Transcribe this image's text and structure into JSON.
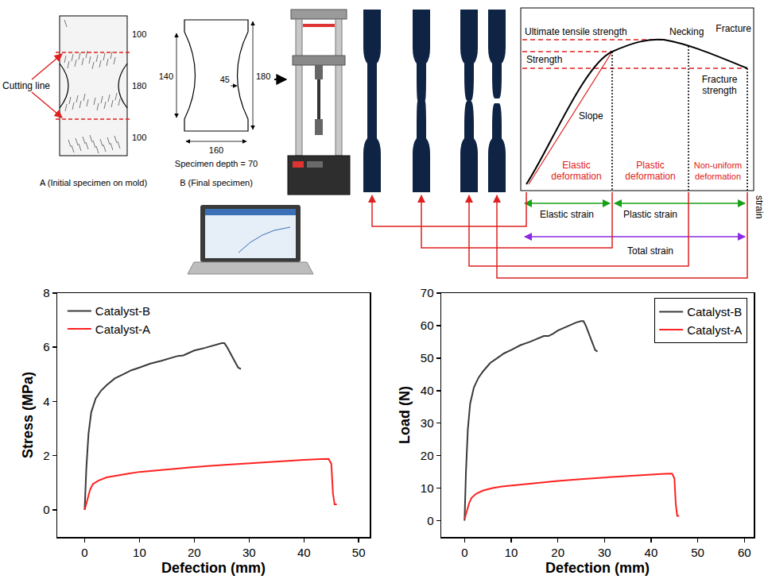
{
  "diagram": {
    "specimen_a": {
      "label": "Cutting line",
      "dims": [
        100,
        180,
        100
      ],
      "caption": "A (Initial specimen on mold)"
    },
    "specimen_b": {
      "left": 140,
      "right": 180,
      "inner": 45,
      "bottom": 160,
      "depth": "Specimen depth = 70",
      "caption": "B (Final specimen)"
    },
    "curve": {
      "ultimate": "Ultimate tensile strength",
      "necking": "Necking",
      "fracture": "Fracture",
      "strength": "Strength",
      "fracture_strength": "Fracture strength",
      "slope": "Slope",
      "elastic_deformation": "Elastic deformation",
      "plastic_deformation": "Plastic deformation",
      "nonuniform_deformation": "Non-uniform deformation",
      "elastic_strain": "Elastic strain",
      "plastic_strain": "Plastic strain",
      "total_strain": "Total strain",
      "axis": "strain"
    }
  },
  "chart_data": [
    {
      "type": "line",
      "x_label": "Defection (mm)",
      "y_label": "Stress (MPa)",
      "xlim": [
        -5,
        52
      ],
      "xticks": [
        0,
        10,
        20,
        30,
        40,
        50
      ],
      "ylim": [
        -1,
        8
      ],
      "yticks": [
        0,
        2,
        4,
        6,
        8
      ],
      "grid": false,
      "legend": "upper left",
      "series": [
        {
          "name": "Catalyst-B",
          "color": "#3a3a3a",
          "x": [
            0,
            0.3,
            0.7,
            1.2,
            2,
            3,
            4,
            5.5,
            7,
            8.5,
            10,
            12,
            14,
            16,
            17,
            18,
            19,
            20,
            22,
            24,
            25,
            25.5,
            26,
            26.8,
            27.5,
            28,
            28.5
          ],
          "values": [
            0,
            1.5,
            2.8,
            3.6,
            4.1,
            4.4,
            4.6,
            4.85,
            5.0,
            5.15,
            5.25,
            5.4,
            5.5,
            5.62,
            5.68,
            5.7,
            5.78,
            5.88,
            5.98,
            6.1,
            6.15,
            6.15,
            6.0,
            5.7,
            5.45,
            5.25,
            5.2
          ]
        },
        {
          "name": "Catalyst-A",
          "color": "#ff2020",
          "x": [
            0,
            0.5,
            1,
            1.5,
            2.5,
            4,
            6,
            8,
            10,
            15,
            20,
            25,
            30,
            35,
            40,
            43,
            44.5,
            45,
            45.3,
            45.6,
            46
          ],
          "values": [
            0,
            0.4,
            0.75,
            0.95,
            1.08,
            1.2,
            1.28,
            1.34,
            1.4,
            1.5,
            1.58,
            1.65,
            1.72,
            1.78,
            1.84,
            1.87,
            1.88,
            1.7,
            0.6,
            0.2,
            0.2
          ]
        }
      ]
    },
    {
      "type": "line",
      "x_label": "Defection (mm)",
      "y_label": "Load (N)",
      "xlim": [
        -5,
        62
      ],
      "xticks": [
        0,
        10,
        20,
        30,
        40,
        50,
        60
      ],
      "ylim": [
        -5,
        70
      ],
      "yticks": [
        0,
        10,
        20,
        30,
        40,
        50,
        60,
        70
      ],
      "grid": false,
      "legend": "upper right",
      "series": [
        {
          "name": "Catalyst-B",
          "color": "#3a3a3a",
          "x": [
            0,
            0.3,
            0.7,
            1.2,
            2,
            3,
            4,
            5.5,
            7,
            8.5,
            10,
            12,
            14,
            16,
            17,
            18,
            19,
            20,
            22,
            24,
            25,
            25.5,
            26,
            26.8,
            27.5,
            28,
            28.5
          ],
          "values": [
            0,
            15,
            28,
            36,
            41,
            44,
            46,
            48.5,
            50,
            51.5,
            52.5,
            54,
            55,
            56.2,
            56.8,
            56.8,
            57.5,
            58.5,
            59.8,
            61,
            61.4,
            61.4,
            60,
            57,
            54.5,
            52.5,
            52
          ]
        },
        {
          "name": "Catalyst-A",
          "color": "#ff2020",
          "x": [
            0,
            0.5,
            1,
            1.5,
            2.5,
            4,
            6,
            8,
            10,
            15,
            20,
            25,
            30,
            35,
            40,
            43,
            44.5,
            45,
            45.3,
            45.6,
            46
          ],
          "values": [
            0.5,
            3,
            5.5,
            7,
            8.3,
            9.3,
            10,
            10.5,
            10.8,
            11.5,
            12.2,
            12.8,
            13.3,
            13.8,
            14.2,
            14.4,
            14.5,
            13,
            5,
            1.5,
            1.5
          ]
        }
      ]
    }
  ]
}
